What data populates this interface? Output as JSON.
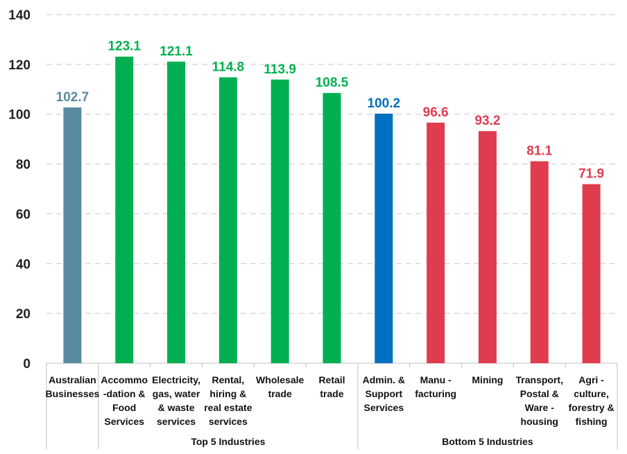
{
  "chart_data": {
    "type": "bar",
    "title": "",
    "xlabel": "",
    "ylabel": "",
    "ylim": [
      0,
      140
    ],
    "yticks": [
      0,
      20,
      40,
      60,
      80,
      100,
      120,
      140
    ],
    "grid": "horizontal dashed",
    "legend": "none",
    "categories": [
      {
        "lines": [
          "Australian",
          "Businesses"
        ],
        "value": 102.7,
        "color": "#5A8AA0",
        "label_color": "#5A8AA0"
      },
      {
        "lines": [
          "Accommo",
          "-dation &",
          "Food",
          "Services"
        ],
        "value": 123.1,
        "color": "#00B050",
        "label_color": "#00B050"
      },
      {
        "lines": [
          "Electricity,",
          "gas, water",
          "& waste",
          "services"
        ],
        "value": 121.1,
        "color": "#00B050",
        "label_color": "#00B050"
      },
      {
        "lines": [
          "Rental,",
          "hiring &",
          "real estate",
          "services"
        ],
        "value": 114.8,
        "color": "#00B050",
        "label_color": "#00B050"
      },
      {
        "lines": [
          "Wholesale",
          "trade"
        ],
        "value": 113.9,
        "color": "#00B050",
        "label_color": "#00B050"
      },
      {
        "lines": [
          "Retail",
          "trade"
        ],
        "value": 108.5,
        "color": "#00B050",
        "label_color": "#00B050"
      },
      {
        "lines": [
          "Admin. &",
          "Support",
          "Services"
        ],
        "value": 100.2,
        "color": "#0070C0",
        "label_color": "#0070C0"
      },
      {
        "lines": [
          "Manu -",
          "facturing"
        ],
        "value": 96.6,
        "color": "#E03C50",
        "label_color": "#E03C50"
      },
      {
        "lines": [
          "Mining"
        ],
        "value": 93.2,
        "color": "#E03C50",
        "label_color": "#E03C50"
      },
      {
        "lines": [
          "Transport,",
          "Postal &",
          "Ware -",
          "housing"
        ],
        "value": 81.1,
        "color": "#E03C50",
        "label_color": "#E03C50"
      },
      {
        "lines": [
          "Agri -",
          "culture,",
          "forestry &",
          "fishing"
        ],
        "value": 71.9,
        "color": "#E03C50",
        "label_color": "#E03C50"
      }
    ],
    "groups": [
      {
        "label": "Top 5 Industries",
        "from": 1,
        "to": 5
      },
      {
        "label": "Bottom 5 Industries",
        "from": 6,
        "to": 10
      }
    ]
  }
}
